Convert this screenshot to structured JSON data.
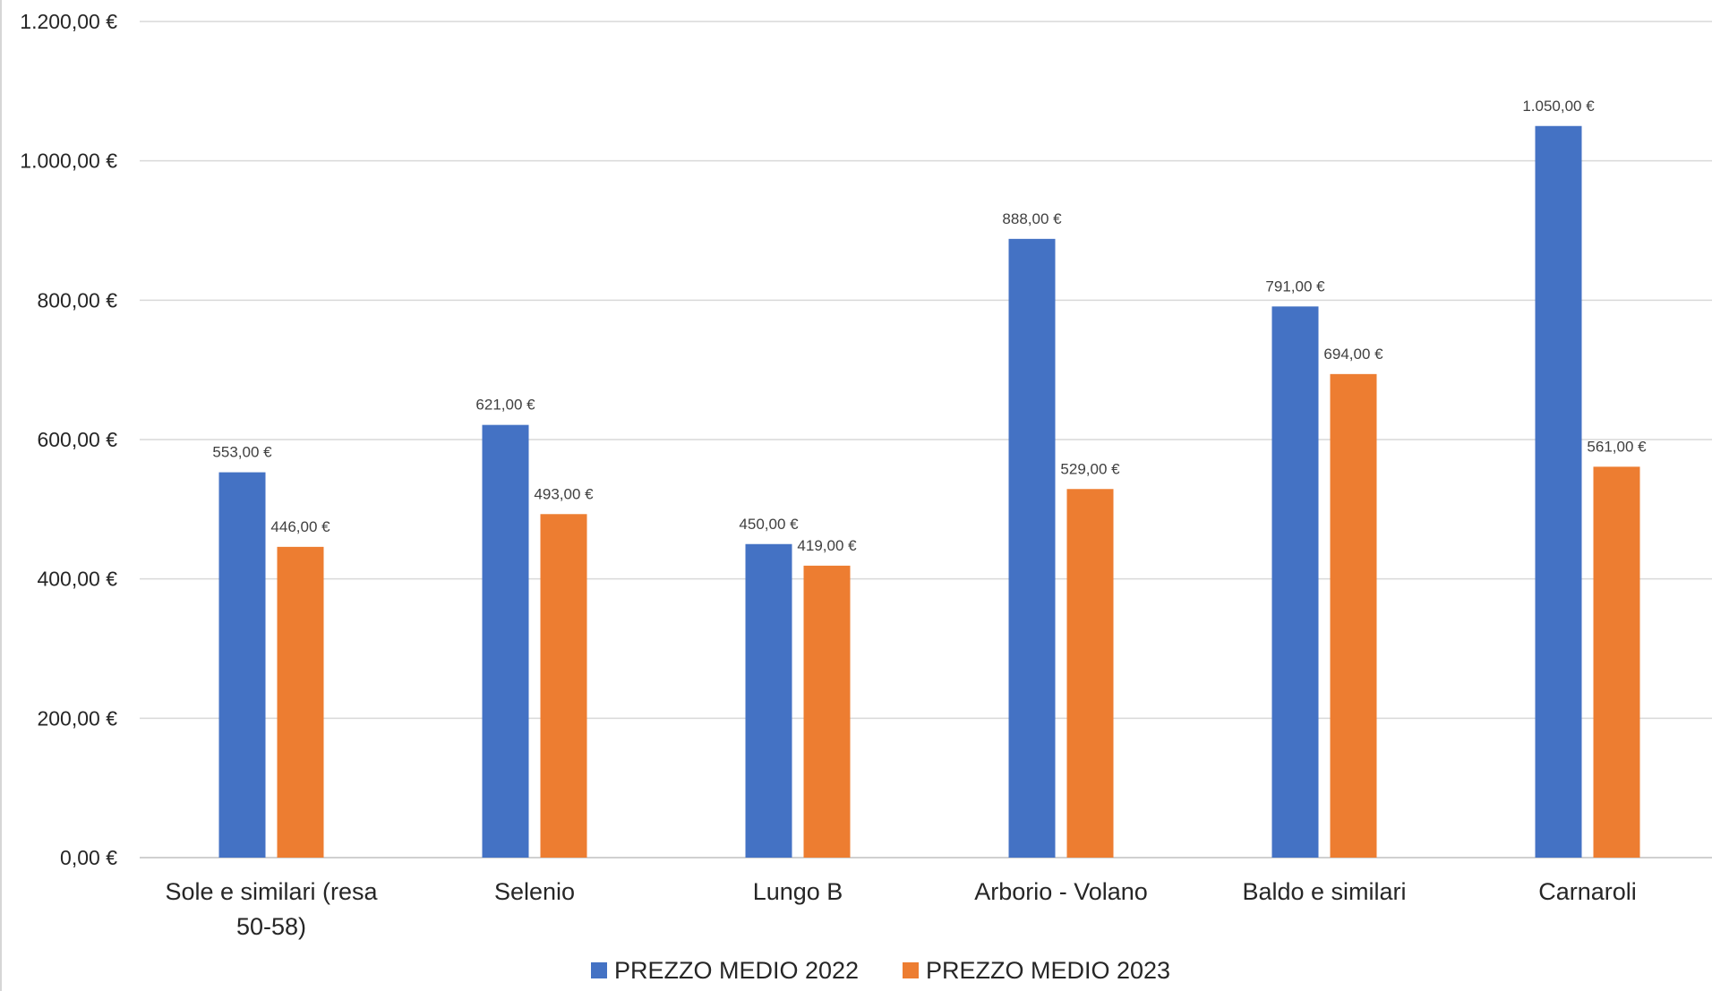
{
  "chart_data": {
    "type": "bar",
    "title": "",
    "xlabel": "",
    "ylabel": "",
    "categories": [
      "Sole e similari (resa 50-58)",
      "Selenio",
      "Lungo B",
      "Arborio - Volano",
      "Baldo e similari",
      "Carnaroli"
    ],
    "series": [
      {
        "name": "PREZZO MEDIO 2022",
        "color": "#4472C4",
        "values": [
          553,
          621,
          450,
          888,
          791,
          1050
        ],
        "labels": [
          "553,00 €",
          "621,00 €",
          "450,00 €",
          "888,00 €",
          "791,00 €",
          "1.050,00 €"
        ]
      },
      {
        "name": "PREZZO MEDIO 2023",
        "color": "#ED7D31",
        "values": [
          446,
          493,
          419,
          529,
          694,
          561
        ],
        "labels": [
          "446,00 €",
          "493,00 €",
          "419,00 €",
          "529,00 €",
          "694,00 €",
          "561,00 €"
        ]
      }
    ],
    "ylim": [
      0,
      1200
    ],
    "y_ticks": [
      0,
      200,
      400,
      600,
      800,
      1000,
      1200
    ],
    "y_tick_labels": [
      "0,00 €",
      "200,00 €",
      "400,00 €",
      "600,00 €",
      "800,00 €",
      "1.000,00 €",
      "1.200,00 €"
    ],
    "grid": true,
    "legend_position": "bottom-center"
  }
}
